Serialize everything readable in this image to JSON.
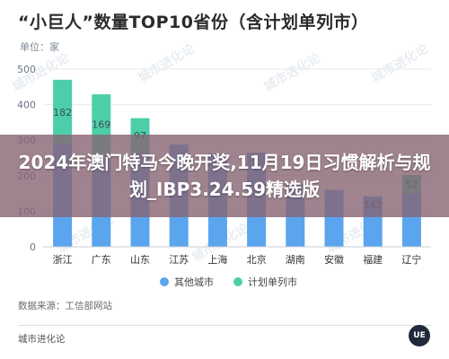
{
  "banner": {
    "text": "2024年澳门特马今晚开奖,11月19日习惯解析与规划_IBP3.24.59精选版"
  },
  "watermark": {
    "text": "城市进化论",
    "subtext": "URBAN EVOLUTION"
  },
  "source": "数据来源：工信部网站",
  "footer_brand": "城市进化论",
  "logo_text": "UE",
  "colors": {
    "other_cities": "#5aa5ee",
    "planned_cities": "#4ccfa8",
    "grid": "#e6e9ee",
    "axis_text": "#6b7584",
    "value_label": "#3f4a5a"
  },
  "chart_data": {
    "type": "bar",
    "stacked": true,
    "title": "“小巨人”数量TOP10省份（含计划单列市）",
    "ylabel": "单位：家",
    "xlabel": "",
    "ylim": [
      0,
      500
    ],
    "yticks": [
      0,
      100,
      200,
      300,
      400,
      500
    ],
    "grid": true,
    "legend_position": "bottom",
    "categories": [
      "浙江",
      "广东",
      "山东",
      "江苏",
      "上海",
      "北京",
      "湖南",
      "安徽",
      "福建",
      "辽宁"
    ],
    "series": [
      {
        "name": "其他城市",
        "values": [
          288,
          260,
          265,
          288,
          262,
          265,
          175,
          160,
          142,
          150
        ]
      },
      {
        "name": "计划单列市",
        "values": [
          182,
          169,
          97,
          0,
          0,
          0,
          0,
          0,
          0,
          52
        ]
      }
    ],
    "data_labels": {
      "planned": [
        "182",
        "169",
        "97",
        "",
        "",
        "",
        "",
        "",
        "",
        "52"
      ],
      "other_visible": [
        "",
        "",
        "",
        "",
        "",
        "",
        "",
        "",
        "142",
        ""
      ]
    }
  }
}
